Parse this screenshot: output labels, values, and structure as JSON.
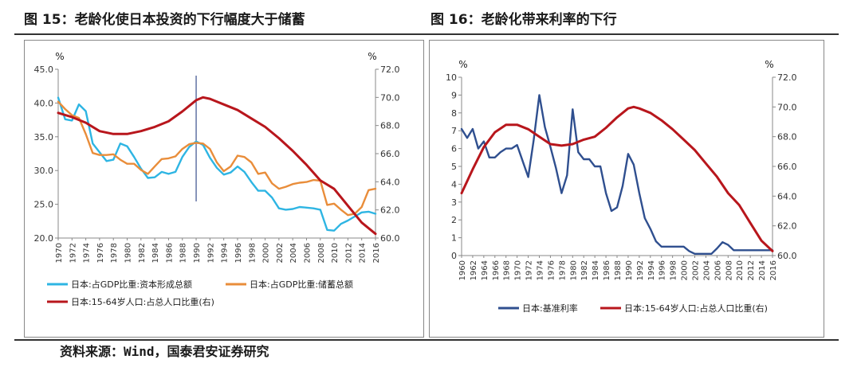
{
  "left_title": "图 15：老龄化使日本投资的下行幅度大于储蓄",
  "right_title": "图 16：老龄化带来利率的下行",
  "source": "资料来源：Wind，国泰君安证券研究",
  "chart_data": [
    {
      "type": "line",
      "title": "",
      "left_unit": "%",
      "right_unit": "%",
      "x_tick_labels": [
        "1970",
        "1972",
        "1974",
        "1976",
        "1978",
        "1980",
        "1982",
        "1984",
        "1986",
        "1988",
        "1990",
        "1992",
        "1994",
        "1996",
        "1998",
        "2000",
        "2002",
        "2004",
        "2006",
        "2008",
        "2010",
        "2012",
        "2014",
        "2016"
      ],
      "y_left_ticks": [
        "20.0",
        "25.0",
        "30.0",
        "35.0",
        "40.0",
        "45.0"
      ],
      "y_right_ticks": [
        "60.0",
        "62.0",
        "64.0",
        "66.0",
        "68.0",
        "70.0",
        "72.0"
      ],
      "ylim_left": [
        20,
        45
      ],
      "ylim_right": [
        60,
        72
      ],
      "vertical_marker_year": 1990,
      "legend_position": "bottom",
      "series": [
        {
          "name": "日本:占GDP比重:资本形成总额",
          "axis": "left",
          "color": "#2eb5e3",
          "x": [
            1970,
            1971,
            1972,
            1973,
            1974,
            1975,
            1976,
            1977,
            1978,
            1979,
            1980,
            1981,
            1982,
            1983,
            1984,
            1985,
            1986,
            1987,
            1988,
            1989,
            1990,
            1991,
            1992,
            1993,
            1994,
            1995,
            1996,
            1997,
            1998,
            1999,
            2000,
            2001,
            2002,
            2003,
            2004,
            2005,
            2006,
            2007,
            2008,
            2009,
            2010,
            2011,
            2012,
            2013,
            2014,
            2015,
            2016
          ],
          "values": [
            40.8,
            37.6,
            37.4,
            39.8,
            38.8,
            34.0,
            32.7,
            31.4,
            31.6,
            34.0,
            33.6,
            32.0,
            30.3,
            28.9,
            29.0,
            29.8,
            29.5,
            29.8,
            32.0,
            33.5,
            34.3,
            33.8,
            31.9,
            30.4,
            29.4,
            29.7,
            30.6,
            29.8,
            28.3,
            27.0,
            27.0,
            26.0,
            24.4,
            24.2,
            24.3,
            24.6,
            24.5,
            24.4,
            24.2,
            21.2,
            21.1,
            22.1,
            22.6,
            23.2,
            23.8,
            23.9,
            23.6
          ]
        },
        {
          "name": "日本:占GDP比重:储蓄总额",
          "axis": "left",
          "color": "#e98d3a",
          "x": [
            1970,
            1971,
            1972,
            1973,
            1974,
            1975,
            1976,
            1977,
            1978,
            1979,
            1980,
            1981,
            1982,
            1983,
            1984,
            1985,
            1986,
            1987,
            1988,
            1989,
            1990,
            1991,
            1992,
            1993,
            1994,
            1995,
            1996,
            1997,
            1998,
            1999,
            2000,
            2001,
            2002,
            2003,
            2004,
            2005,
            2006,
            2007,
            2008,
            2009,
            2010,
            2011,
            2012,
            2013,
            2014,
            2015,
            2016
          ],
          "values": [
            40.2,
            39.1,
            38.2,
            37.8,
            35.4,
            32.6,
            32.3,
            32.3,
            32.4,
            31.6,
            31.0,
            31.0,
            30.1,
            29.5,
            30.6,
            31.7,
            31.8,
            32.1,
            33.2,
            33.9,
            34.1,
            34.0,
            33.2,
            31.2,
            29.9,
            30.6,
            32.2,
            32.0,
            31.2,
            29.5,
            29.7,
            28.1,
            27.3,
            27.6,
            28.0,
            28.2,
            28.3,
            28.6,
            28.5,
            24.9,
            25.1,
            24.2,
            23.4,
            23.6,
            24.6,
            27.1,
            27.3
          ]
        },
        {
          "name": "日本:15-64岁人口:占总人口比重(右)",
          "axis": "right",
          "color": "#b8161c",
          "x": [
            1970,
            1972,
            1974,
            1976,
            1978,
            1980,
            1982,
            1984,
            1986,
            1988,
            1990,
            1991,
            1992,
            1994,
            1996,
            1998,
            2000,
            2002,
            2004,
            2006,
            2008,
            2010,
            2012,
            2014,
            2016
          ],
          "values": [
            68.9,
            68.6,
            68.2,
            67.6,
            67.4,
            67.4,
            67.6,
            67.9,
            68.3,
            69.0,
            69.8,
            70.0,
            69.9,
            69.5,
            69.1,
            68.5,
            67.9,
            67.1,
            66.2,
            65.2,
            64.1,
            63.5,
            62.3,
            61.1,
            60.3
          ]
        }
      ]
    },
    {
      "type": "line",
      "title": "",
      "left_unit": "%",
      "right_unit": "%",
      "x_tick_labels": [
        "1960",
        "1962",
        "1964",
        "1966",
        "1968",
        "1970",
        "1972",
        "1974",
        "1976",
        "1978",
        "1980",
        "1982",
        "1984",
        "1986",
        "1988",
        "1990",
        "1992",
        "1994",
        "1996",
        "1998",
        "2000",
        "2002",
        "2004",
        "2006",
        "2008",
        "2010",
        "2012",
        "2014",
        "2016"
      ],
      "y_left_ticks": [
        "0",
        "1",
        "2",
        "3",
        "4",
        "5",
        "6",
        "7",
        "8",
        "9",
        "10"
      ],
      "y_right_ticks": [
        "60.0",
        "62.0",
        "64.0",
        "66.0",
        "68.0",
        "70.0",
        "72.0"
      ],
      "ylim_left": [
        0,
        10
      ],
      "ylim_right": [
        60,
        72
      ],
      "legend_position": "bottom",
      "series": [
        {
          "name": "日本:基准利率",
          "axis": "left",
          "color": "#2f4f8f",
          "x": [
            1960,
            1961,
            1962,
            1963,
            1964,
            1965,
            1966,
            1967,
            1968,
            1969,
            1970,
            1971,
            1972,
            1973,
            1974,
            1975,
            1976,
            1977,
            1978,
            1979,
            1980,
            1981,
            1982,
            1983,
            1984,
            1985,
            1986,
            1987,
            1988,
            1989,
            1990,
            1991,
            1992,
            1993,
            1994,
            1995,
            1996,
            1997,
            1998,
            1999,
            2000,
            2001,
            2002,
            2003,
            2004,
            2005,
            2006,
            2007,
            2008,
            2009,
            2010,
            2011,
            2012,
            2013,
            2014,
            2015,
            2016
          ],
          "values": [
            7.1,
            6.6,
            7.1,
            6.0,
            6.4,
            5.5,
            5.5,
            5.8,
            6.0,
            6.0,
            6.2,
            5.3,
            4.4,
            6.5,
            9.0,
            7.2,
            6.1,
            4.9,
            3.5,
            4.5,
            8.2,
            5.8,
            5.4,
            5.4,
            5.0,
            5.0,
            3.5,
            2.5,
            2.7,
            3.9,
            5.7,
            5.1,
            3.5,
            2.1,
            1.5,
            0.8,
            0.5,
            0.5,
            0.5,
            0.5,
            0.5,
            0.25,
            0.1,
            0.1,
            0.1,
            0.1,
            0.4,
            0.75,
            0.6,
            0.3,
            0.3,
            0.3,
            0.3,
            0.3,
            0.3,
            0.3,
            0.3
          ]
        },
        {
          "name": "日本:15-64岁人口:占总人口比重(右)",
          "axis": "right",
          "color": "#b8161c",
          "x": [
            1960,
            1962,
            1964,
            1966,
            1968,
            1970,
            1972,
            1974,
            1976,
            1978,
            1980,
            1982,
            1984,
            1986,
            1988,
            1990,
            1991,
            1992,
            1994,
            1996,
            1998,
            2000,
            2002,
            2004,
            2006,
            2008,
            2010,
            2012,
            2014,
            2016
          ],
          "values": [
            64.2,
            65.8,
            67.3,
            68.3,
            68.8,
            68.8,
            68.5,
            68.0,
            67.5,
            67.4,
            67.5,
            67.8,
            68.0,
            68.6,
            69.3,
            69.9,
            70.0,
            69.9,
            69.6,
            69.1,
            68.5,
            67.8,
            67.1,
            66.2,
            65.3,
            64.2,
            63.4,
            62.2,
            61.0,
            60.3
          ]
        }
      ]
    }
  ]
}
